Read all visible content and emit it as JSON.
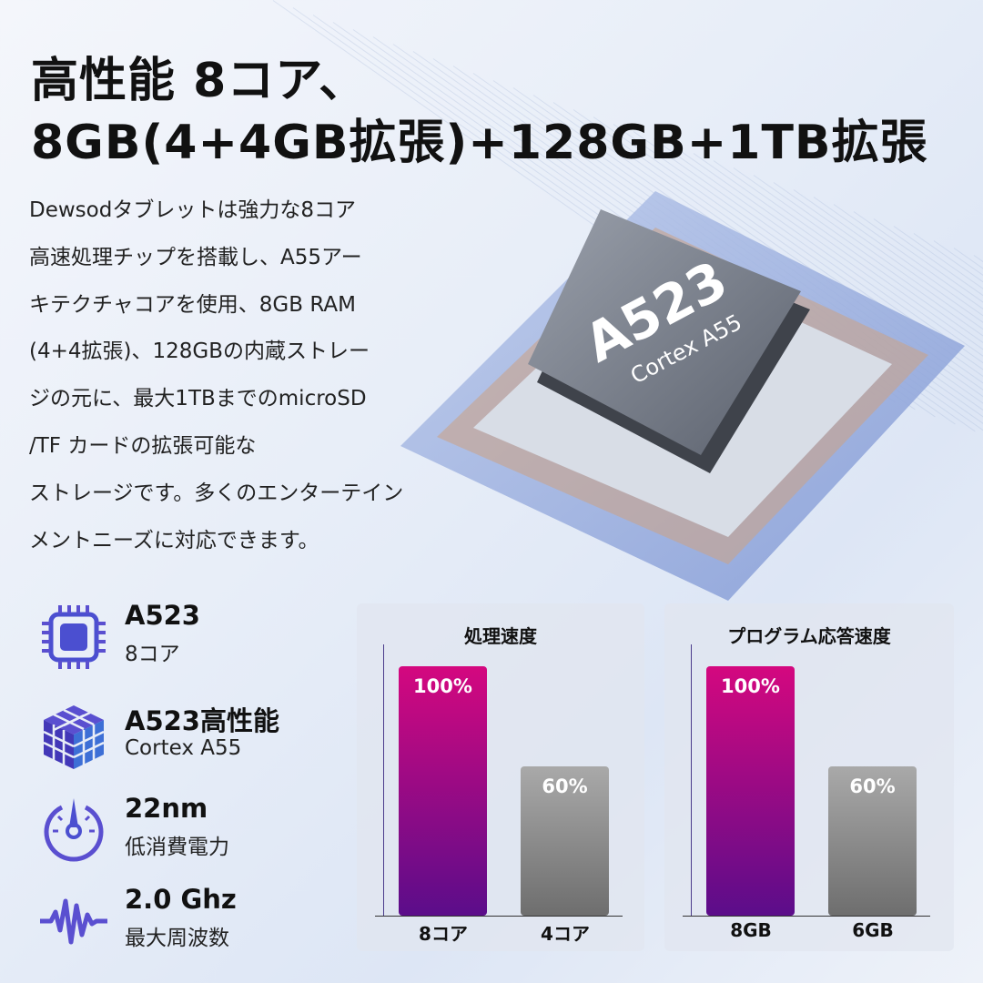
{
  "headline": {
    "line1": "高性能 8コア、",
    "line2": "8GB(4+4GB拡張)+128GB+1TB拡張"
  },
  "description": [
    "Dewsodタブレットは強力な8コア",
    "高速処理チップを搭載し、A55アー",
    "キテクチャコアを使用、8GB RAM",
    "(4+4拡張)、128GBの内蔵ストレー",
    "ジの元に、最大1TBまでのmicroSD",
    "/TF カードの拡張可能な",
    "ストレージです。多くのエンターテイン",
    "メントニーズに対応できます。"
  ],
  "chip": {
    "model": "A523",
    "core": "Cortex A55"
  },
  "features": [
    {
      "icon": "cpu-chip-icon",
      "title": "A523",
      "subtitle": "8コア"
    },
    {
      "icon": "cube-icon",
      "title": "A523高性能",
      "subtitle": "Cortex A55"
    },
    {
      "icon": "gauge-icon",
      "title": "22nm",
      "subtitle": "低消費電力"
    },
    {
      "icon": "waveform-icon",
      "title": "2.0 Ghz",
      "subtitle": "最大周波数"
    }
  ],
  "colors": {
    "accent_top": "#d4087f",
    "accent_bottom": "#5b0d8a",
    "compare": "#8a8a8a",
    "icon": "#4b4fd0"
  },
  "chart_data": [
    {
      "type": "bar",
      "title": "処理速度",
      "categories": [
        "8コア",
        "4コア"
      ],
      "values": [
        100,
        60
      ],
      "value_labels": [
        "100%",
        "60%"
      ],
      "ylim": [
        0,
        100
      ],
      "grid": false
    },
    {
      "type": "bar",
      "title": "プログラム応答速度",
      "categories": [
        "8GB",
        "6GB"
      ],
      "values": [
        100,
        60
      ],
      "value_labels": [
        "100%",
        "60%"
      ],
      "ylim": [
        0,
        100
      ],
      "grid": false
    }
  ]
}
